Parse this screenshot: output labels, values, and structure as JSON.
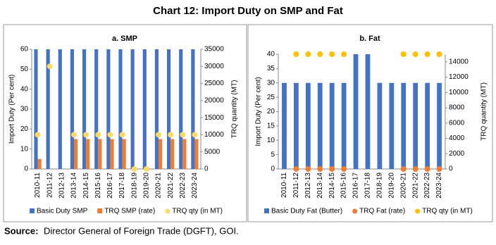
{
  "title": "Chart 12: Import Duty on SMP and Fat",
  "source_label": "Source:",
  "source_text": "Director General of Foreign Trade (DGFT), GOI.",
  "chart_data": [
    {
      "type": "bar",
      "title": "a. SMP",
      "y_label": "Import Duty (Per cent)",
      "y2_label": "TRQ quantity (MT)",
      "categories": [
        "2010-11",
        "2011-12",
        "2012-13",
        "2013-14",
        "2014-15",
        "2015-16",
        "2016-17",
        "2017-18",
        "2018-19",
        "2019-20",
        "2020-21",
        "2021-22",
        "2022-23",
        "2023-24"
      ],
      "ylim": [
        0,
        60
      ],
      "yticks": [
        0,
        10,
        20,
        30,
        40,
        50,
        60
      ],
      "y2lim": [
        0,
        35000
      ],
      "y2ticks": [
        0,
        5000,
        10000,
        15000,
        20000,
        25000,
        30000,
        35000
      ],
      "series": [
        {
          "name": "Basic Duty SMP",
          "type": "bar",
          "color": "#4472c4",
          "values": [
            60,
            60,
            60,
            60,
            60,
            60,
            60,
            60,
            60,
            60,
            60,
            60,
            60,
            60
          ]
        },
        {
          "name": "TRQ SMP (rate)",
          "type": "bar",
          "color": "#ed7d31",
          "values": [
            5,
            0,
            0,
            15,
            15,
            15,
            15,
            15,
            0,
            0,
            15,
            15,
            15,
            15
          ]
        },
        {
          "name": "TRQ qty (in MT)",
          "type": "scatter",
          "axis": "y2",
          "color": "#ffd966",
          "values": [
            10000,
            30000,
            null,
            10000,
            10000,
            10000,
            10000,
            10000,
            0,
            0,
            10000,
            10000,
            10000,
            10000
          ]
        }
      ]
    },
    {
      "type": "bar",
      "title": "b. Fat",
      "y_label": "Import Duty (Per cent)",
      "y2_label": "TRQ quantity (MT)",
      "categories": [
        "2010-11",
        "2011-12",
        "2012-13",
        "2013-14",
        "2014-15",
        "2015-16",
        "2016-17",
        "2017-18",
        "2018-19",
        "2019-20",
        "2020-21",
        "2021-22",
        "2022-23",
        "2023-24"
      ],
      "ylim": [
        0,
        40
      ],
      "yticks": [
        0,
        5,
        10,
        15,
        20,
        25,
        30,
        35,
        40
      ],
      "y2lim": [
        0,
        15000
      ],
      "y2ticks": [
        0,
        2000,
        4000,
        6000,
        8000,
        10000,
        12000,
        14000
      ],
      "series": [
        {
          "name": "Basic Duty Fat (Butter)",
          "type": "bar",
          "color": "#4472c4",
          "values": [
            30,
            30,
            30,
            30,
            30,
            30,
            40,
            40,
            30,
            30,
            30,
            30,
            30,
            30
          ]
        },
        {
          "name": "TRQ Fat (rate)",
          "type": "scatter",
          "color": "#ed7d31",
          "values": [
            null,
            0,
            0,
            0,
            0,
            0,
            null,
            null,
            null,
            null,
            0,
            0,
            0,
            0
          ]
        },
        {
          "name": "TRQ qty (in MT)",
          "type": "scatter",
          "axis": "y2",
          "color": "#ffc000",
          "values": [
            null,
            15000,
            15000,
            15000,
            15000,
            15000,
            null,
            null,
            null,
            null,
            15000,
            15000,
            15000,
            15000
          ]
        }
      ]
    }
  ]
}
